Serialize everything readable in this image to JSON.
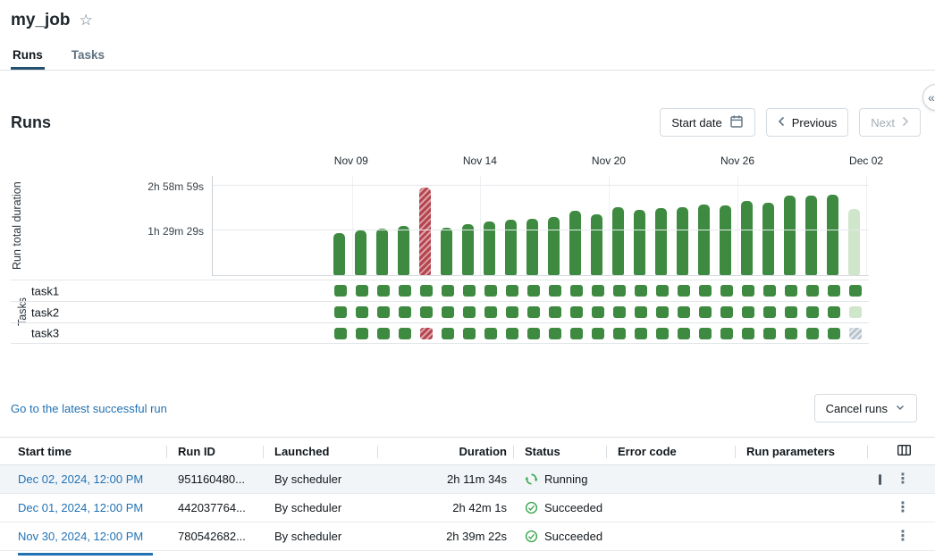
{
  "page": {
    "title": "my_job"
  },
  "tabs": [
    {
      "label": "Runs",
      "active": true
    },
    {
      "label": "Tasks",
      "active": false
    }
  ],
  "runs_section": {
    "heading": "Runs",
    "start_date_label": "Start date",
    "previous_label": "Previous",
    "next_label": "Next"
  },
  "toolbar": {
    "latest_successful_link": "Go to the latest successful run",
    "cancel_runs_label": "Cancel runs"
  },
  "chart_data": {
    "type": "bar",
    "ylabel": "Run total duration",
    "tasks_axis_label": "Tasks",
    "grid": true,
    "yticks": [
      {
        "label": "2h 58m 59s",
        "minutes": 178.98
      },
      {
        "label": "1h 29m 29s",
        "minutes": 89.48
      }
    ],
    "x_axis_labels": [
      {
        "label": "Nov 09",
        "pct": 21.2
      },
      {
        "label": "Nov 14",
        "pct": 40.8
      },
      {
        "label": "Nov 20",
        "pct": 60.4
      },
      {
        "label": "Nov 26",
        "pct": 80.0
      },
      {
        "label": "Dec 02",
        "pct": 99.6
      }
    ],
    "bars": [
      {
        "date": "Nov 08",
        "minutes": 84,
        "status": "success"
      },
      {
        "date": "Nov 09",
        "minutes": 89,
        "status": "success"
      },
      {
        "date": "Nov 10",
        "minutes": 93,
        "status": "success"
      },
      {
        "date": "Nov 11",
        "minutes": 98,
        "status": "success"
      },
      {
        "date": "Nov 12",
        "minutes": 175,
        "status": "failed"
      },
      {
        "date": "Nov 13",
        "minutes": 95,
        "status": "success"
      },
      {
        "date": "Nov 14",
        "minutes": 102,
        "status": "success"
      },
      {
        "date": "Nov 15",
        "minutes": 107,
        "status": "success"
      },
      {
        "date": "Nov 16",
        "minutes": 111,
        "status": "success"
      },
      {
        "date": "Nov 17",
        "minutes": 113,
        "status": "success"
      },
      {
        "date": "Nov 18",
        "minutes": 116,
        "status": "success"
      },
      {
        "date": "Nov 19",
        "minutes": 129,
        "status": "success"
      },
      {
        "date": "Nov 20",
        "minutes": 122,
        "status": "success"
      },
      {
        "date": "Nov 21",
        "minutes": 136,
        "status": "success"
      },
      {
        "date": "Nov 22",
        "minutes": 131,
        "status": "success"
      },
      {
        "date": "Nov 23",
        "minutes": 134,
        "status": "success"
      },
      {
        "date": "Nov 24",
        "minutes": 136,
        "status": "success"
      },
      {
        "date": "Nov 25",
        "minutes": 141,
        "status": "success"
      },
      {
        "date": "Nov 26",
        "minutes": 140,
        "status": "success"
      },
      {
        "date": "Nov 27",
        "minutes": 149,
        "status": "success"
      },
      {
        "date": "Nov 28",
        "minutes": 145,
        "status": "success"
      },
      {
        "date": "Nov 29",
        "minutes": 159,
        "status": "success"
      },
      {
        "date": "Nov 30",
        "minutes": 159,
        "status": "success"
      },
      {
        "date": "Dec 01",
        "minutes": 162,
        "status": "success"
      },
      {
        "date": "Dec 02",
        "minutes": 132,
        "status": "running"
      }
    ],
    "task_rows": [
      {
        "name": "task1",
        "cells": [
          "success",
          "success",
          "success",
          "success",
          "success",
          "success",
          "success",
          "success",
          "success",
          "success",
          "success",
          "success",
          "success",
          "success",
          "success",
          "success",
          "success",
          "success",
          "success",
          "success",
          "success",
          "success",
          "success",
          "success",
          "success"
        ]
      },
      {
        "name": "task2",
        "cells": [
          "success",
          "success",
          "success",
          "success",
          "success",
          "success",
          "success",
          "success",
          "success",
          "success",
          "success",
          "success",
          "success",
          "success",
          "success",
          "success",
          "success",
          "success",
          "success",
          "success",
          "success",
          "success",
          "success",
          "success",
          "running"
        ]
      },
      {
        "name": "task3",
        "cells": [
          "success",
          "success",
          "success",
          "success",
          "failed",
          "success",
          "success",
          "success",
          "success",
          "success",
          "success",
          "success",
          "success",
          "success",
          "success",
          "success",
          "success",
          "success",
          "success",
          "success",
          "success",
          "success",
          "success",
          "success",
          "pending"
        ]
      }
    ]
  },
  "table": {
    "columns": [
      "Start time",
      "Run ID",
      "Launched",
      "Duration",
      "Status",
      "Error code",
      "Run parameters"
    ],
    "rows": [
      {
        "start_time": "Dec 02, 2024, 12:00 PM",
        "run_id": "951160480...",
        "launched": "By scheduler",
        "duration": "2h 11m 34s",
        "status": "Running",
        "status_kind": "running",
        "error_code": "",
        "run_parameters": "",
        "highlighted": true,
        "cancellable": true
      },
      {
        "start_time": "Dec 01, 2024, 12:00 PM",
        "run_id": "442037764...",
        "launched": "By scheduler",
        "duration": "2h 42m 1s",
        "status": "Succeeded",
        "status_kind": "success",
        "error_code": "",
        "run_parameters": "",
        "highlighted": false,
        "cancellable": false
      },
      {
        "start_time": "Nov 30, 2024, 12:00 PM",
        "run_id": "780542682...",
        "launched": "By scheduler",
        "duration": "2h 39m 22s",
        "status": "Succeeded",
        "status_kind": "success",
        "error_code": "",
        "run_parameters": "",
        "highlighted": false,
        "cancellable": false
      }
    ]
  },
  "colors": {
    "success_green": "#3d8a40",
    "running_light_green": "#cfe6cb",
    "failed_red": "#b2454e",
    "pending_gray": "#b9c3cd",
    "link_blue": "#2272B4",
    "active_tab_underline": "#24516e",
    "status_icon_green": "#3BA74E"
  }
}
